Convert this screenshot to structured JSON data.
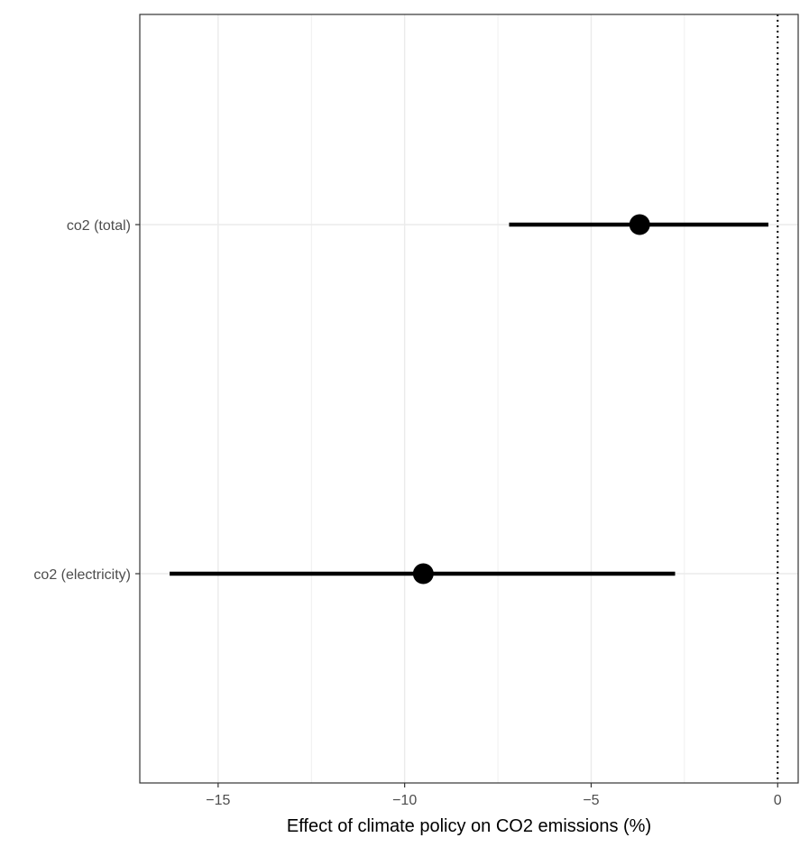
{
  "chart_data": {
    "type": "forest",
    "xlabel": "Effect of climate policy on CO2 emissions (%)",
    "ylabel": "",
    "xlim": [
      -17.1,
      0.55
    ],
    "x_ticks": [
      -15,
      -10,
      -5,
      0
    ],
    "x_tick_labels": [
      "−15",
      "−10",
      "−5",
      "0"
    ],
    "grid": true,
    "reference_line": 0,
    "series": [
      {
        "categories": [
          "co2 (total)",
          "co2 (electricity)"
        ],
        "estimate": [
          -3.7,
          -9.5
        ],
        "ci_low": [
          -7.2,
          -16.3
        ],
        "ci_high": [
          -0.25,
          -2.75
        ]
      }
    ]
  }
}
